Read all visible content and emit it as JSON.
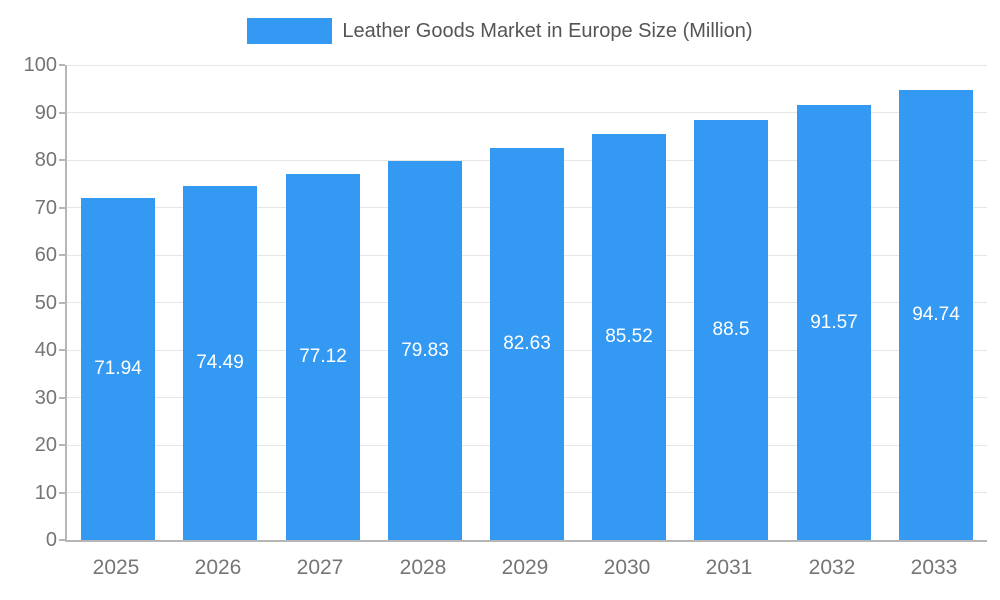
{
  "chart_data": {
    "type": "bar",
    "title": "Leather Goods Market in Europe Size (Million)",
    "categories": [
      "2025",
      "2026",
      "2027",
      "2028",
      "2029",
      "2030",
      "2031",
      "2032",
      "2033"
    ],
    "values": [
      71.94,
      74.49,
      77.12,
      79.83,
      82.63,
      85.52,
      88.5,
      91.57,
      94.74
    ],
    "value_labels": [
      "71.94",
      "74.49",
      "77.12",
      "79.83",
      "82.63",
      "85.52",
      "88.5",
      "91.57",
      "94.74"
    ],
    "ylim": [
      0,
      100
    ],
    "ytick_step": 10,
    "ytick_labels": [
      "0",
      "10",
      "20",
      "30",
      "40",
      "50",
      "60",
      "70",
      "80",
      "90",
      "100"
    ],
    "xlabel": "",
    "ylabel": "",
    "grid": true,
    "legend_position": "top",
    "colors": {
      "bar": "#3399f3",
      "grid": "#e6e6e6",
      "axis": "#b6b6b6",
      "tick_text": "#757575",
      "value_text": "#ffffff",
      "legend_text": "#555555",
      "background": "#ffffff"
    }
  }
}
